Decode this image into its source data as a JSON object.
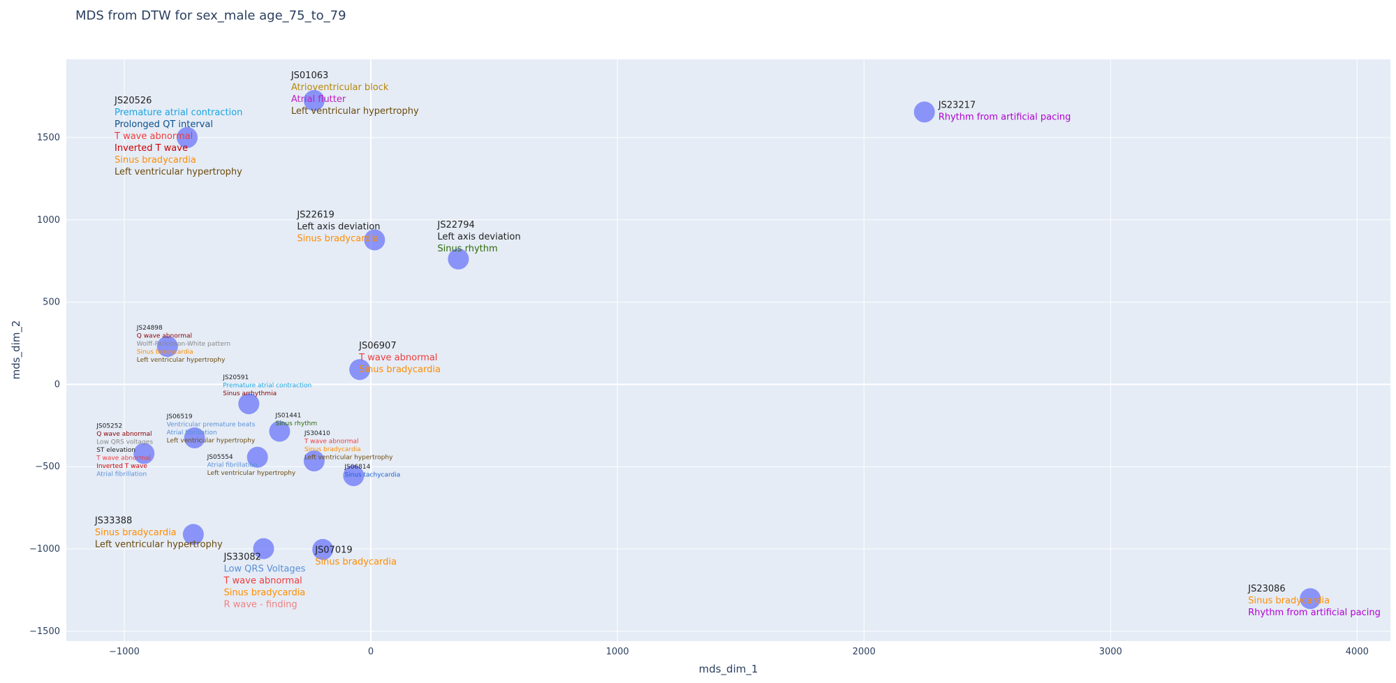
{
  "chart_data": {
    "type": "scatter",
    "title": "MDS from DTW for sex_male age_75_to_79",
    "xlabel": "mds_dim_1",
    "ylabel": "mds_dim_2",
    "xlim": [
      -1235,
      4135
    ],
    "ylim": [
      -1560,
      1975
    ],
    "x_ticks": [
      -1000,
      0,
      1000,
      2000,
      3000,
      4000
    ],
    "x_tick_labels": [
      "−1000",
      "0",
      "1000",
      "2000",
      "3000",
      "4000"
    ],
    "y_ticks": [
      -1500,
      -1000,
      -500,
      0,
      500,
      1000,
      1500
    ],
    "y_tick_labels": [
      "−1500",
      "−1000",
      "−500",
      "0",
      "500",
      "1000",
      "1500"
    ],
    "grid": true,
    "marker_color": "#636efa",
    "plot_background": "#e5ecf6",
    "points": [
      {
        "id": "JS01063",
        "x": -230,
        "y": 1725,
        "labels": [
          {
            "text": "Atrioventricular block",
            "color": "#b8860b"
          },
          {
            "text": "Atrial flutter",
            "color": "#c020c0"
          },
          {
            "text": "Left ventricular hypertrophy",
            "color": "#6b4a0c"
          }
        ]
      },
      {
        "id": "JS20526",
        "x": -745,
        "y": 1500,
        "labels": [
          {
            "text": "Premature atrial contraction",
            "color": "#1aa3e0"
          },
          {
            "text": "Prolonged QT interval",
            "color": "#0b4f8a"
          },
          {
            "text": "T wave abnormal",
            "color": "#ef3b3b"
          },
          {
            "text": "Inverted T wave",
            "color": "#cc0000"
          },
          {
            "text": "Sinus bradycardia",
            "color": "#ff8c00"
          },
          {
            "text": "Left ventricular hypertrophy",
            "color": "#6b4a0c"
          }
        ]
      },
      {
        "id": "JS23217",
        "x": 2245,
        "y": 1655,
        "labels": [
          {
            "text": "Rhythm from artificial pacing",
            "color": "#b000d0"
          }
        ]
      },
      {
        "id": "JS22619",
        "x": 15,
        "y": 878,
        "labels": [
          {
            "text": "Left axis deviation",
            "color": "#222222"
          },
          {
            "text": "Sinus bradycardia",
            "color": "#ff8c00"
          }
        ]
      },
      {
        "id": "JS22794",
        "x": 355,
        "y": 762,
        "labels": [
          {
            "text": "Left axis deviation",
            "color": "#222222"
          },
          {
            "text": "Sinus rhythm",
            "color": "#2e6b0a"
          }
        ]
      },
      {
        "id": "JS24898",
        "x": -825,
        "y": 230,
        "labels": [
          {
            "text": "Q wave abnormal",
            "color": "#8b0000"
          },
          {
            "text": "Wolff-Parkinson-White pattern",
            "color": "#888888"
          },
          {
            "text": "Sinus bradycardia",
            "color": "#ff8c00"
          },
          {
            "text": "Left ventricular hypertrophy",
            "color": "#6b4a0c"
          }
        ]
      },
      {
        "id": "JS06907",
        "x": -45,
        "y": 90,
        "labels": [
          {
            "text": "T wave abnormal",
            "color": "#ef3b3b"
          },
          {
            "text": "Sinus bradycardia",
            "color": "#ff8c00"
          }
        ]
      },
      {
        "id": "JS20591",
        "x": -495,
        "y": -118,
        "labels": [
          {
            "text": "Premature atrial contraction",
            "color": "#1aa3e0"
          },
          {
            "text": "Sinus arrhythmia",
            "color": "#8b0000"
          }
        ]
      },
      {
        "id": "JS01441",
        "x": -370,
        "y": -285,
        "labels": [
          {
            "text": "Sinus rhythm",
            "color": "#2e6b0a"
          }
        ]
      },
      {
        "id": "JS06519",
        "x": -715,
        "y": -325,
        "labels": [
          {
            "text": "Ventricular premature beats",
            "color": "#5b8fd6"
          },
          {
            "text": "Atrial fibrillation",
            "color": "#5b8fd6"
          },
          {
            "text": "Left ventricular hypertrophy",
            "color": "#6b4a0c"
          }
        ]
      },
      {
        "id": "JS05252",
        "x": -920,
        "y": -420,
        "labels": [
          {
            "text": "Q wave abnormal",
            "color": "#8b0000"
          },
          {
            "text": "Low QRS voltages",
            "color": "#888888"
          },
          {
            "text": "ST elevation",
            "color": "#222222"
          },
          {
            "text": "T wave abnormal",
            "color": "#ef3b3b"
          },
          {
            "text": "Inverted T wave",
            "color": "#cc0000"
          },
          {
            "text": "Atrial fibrillation",
            "color": "#5b8fd6"
          }
        ]
      },
      {
        "id": "JS05554",
        "x": -460,
        "y": -443,
        "labels": [
          {
            "text": "Atrial fibrillation",
            "color": "#5b8fd6"
          },
          {
            "text": "Left ventricular hypertrophy",
            "color": "#6b4a0c"
          }
        ]
      },
      {
        "id": "JS30410",
        "x": -230,
        "y": -465,
        "labels": [
          {
            "text": "T wave abnormal",
            "color": "#ef3b3b"
          },
          {
            "text": "Sinus bradycardia",
            "color": "#ff8c00"
          },
          {
            "text": "Left ventricular hypertrophy",
            "color": "#6b4a0c"
          }
        ]
      },
      {
        "id": "JS06814",
        "x": -70,
        "y": -555,
        "labels": [
          {
            "text": "Sinus tachycardia",
            "color": "#1f5fd0"
          }
        ]
      },
      {
        "id": "JS33388",
        "x": -720,
        "y": -912,
        "labels": [
          {
            "text": "Sinus bradycardia",
            "color": "#ff8c00"
          },
          {
            "text": "Left ventricular hypertrophy",
            "color": "#6b4a0c"
          }
        ]
      },
      {
        "id": "JS33082",
        "x": -435,
        "y": -998,
        "labels": [
          {
            "text": "Low QRS Voltages",
            "color": "#5b8fd6"
          },
          {
            "text": "T wave abnormal",
            "color": "#ef3b3b"
          },
          {
            "text": "Sinus bradycardia",
            "color": "#ff8c00"
          },
          {
            "text": "R wave - finding",
            "color": "#f08080"
          }
        ]
      },
      {
        "id": "JS07019",
        "x": -195,
        "y": -1003,
        "labels": [
          {
            "text": "Sinus bradycardia",
            "color": "#ff8c00"
          }
        ]
      },
      {
        "id": "JS23086",
        "x": 3810,
        "y": -1302,
        "labels": [
          {
            "text": "Sinus bradycardia",
            "color": "#ff8c00"
          },
          {
            "text": "Rhythm from artificial pacing",
            "color": "#b000d0"
          }
        ]
      }
    ]
  }
}
